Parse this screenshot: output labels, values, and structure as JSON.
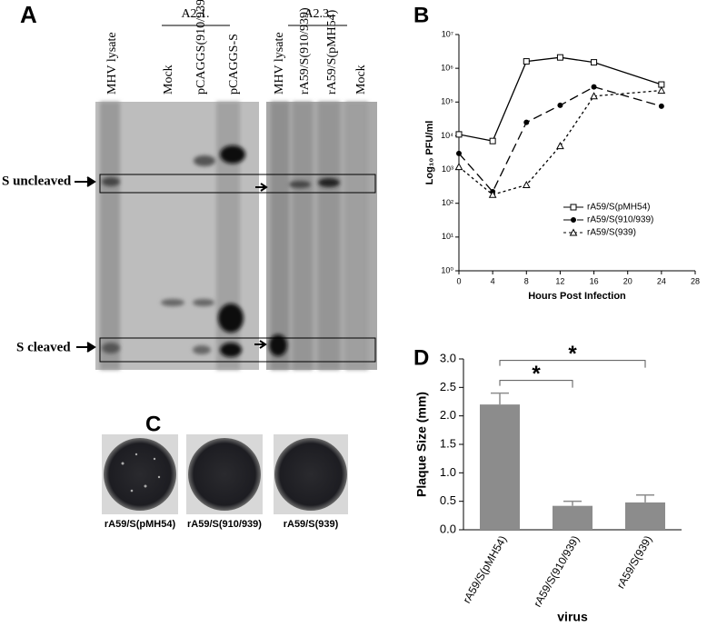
{
  "panel_labels": [
    "A",
    "B",
    "C",
    "D"
  ],
  "gel": {
    "groups": [
      "A2.1.",
      "A2.3."
    ],
    "lanes": [
      "MHV lysate",
      "Mock",
      "pCAGGS(910/939)",
      "pCAGGS-S",
      "MHV lysate",
      "rA59/S(910/939)",
      "rA59/S(pMH54)",
      "Mock"
    ],
    "bands": [
      "S uncleaved",
      "S cleaved"
    ]
  },
  "plates": {
    "labels": [
      "rA59/S(pMH54)",
      "rA59/S(910/939)",
      "rA59/S(939)"
    ]
  },
  "chart_data": [
    {
      "type": "line",
      "ylabel": "Log₁₀ PFU/ml",
      "xlabel": "Hours Post Infection",
      "x": [
        0,
        4,
        8,
        12,
        16,
        24
      ],
      "log_y": true,
      "xlim": [
        0,
        28
      ],
      "xticks": [
        0,
        4,
        8,
        12,
        16,
        20,
        24,
        28
      ],
      "ylim": [
        1,
        10000000
      ],
      "yticks": [
        {
          "value": 1,
          "label": "10⁰"
        },
        {
          "value": 10,
          "label": "10¹"
        },
        {
          "value": 100,
          "label": "10²"
        },
        {
          "value": 1000,
          "label": "10³"
        },
        {
          "value": 10000,
          "label": "10⁴"
        },
        {
          "value": 100000,
          "label": "10⁵"
        },
        {
          "value": 1000000,
          "label": "10⁶"
        },
        {
          "value": 10000000,
          "label": "10⁷"
        }
      ],
      "legend": "right",
      "series": [
        {
          "name": "rA59/S(pMH54)",
          "color": "#000000",
          "dash": "solid",
          "marker": "square",
          "values": [
            11000,
            7000,
            1600000,
            2100000,
            1500000,
            330000
          ]
        },
        {
          "name": "rA59/S(910/939)",
          "color": "#000000",
          "dash": "dashed",
          "marker": "circle",
          "values": [
            3000,
            220,
            25000,
            80000,
            280000,
            75000
          ]
        },
        {
          "name": "rA59/S(939)",
          "color": "#000000",
          "dash": "dotted",
          "marker": "triangle",
          "values": [
            1200,
            180,
            350,
            5000,
            150000,
            220000
          ]
        }
      ]
    },
    {
      "type": "bar",
      "ylabel": "Plaque Size (mm)",
      "xlabel": "virus",
      "categories": [
        "rA59/S(pMH54)",
        "rA59/S(910/939)",
        "rA59/S(939)"
      ],
      "values": [
        2.2,
        0.42,
        0.48
      ],
      "errors": [
        0.2,
        0.08,
        0.13
      ],
      "color": "#8c8c8c",
      "ylim": [
        0,
        3
      ],
      "yticks": [
        {
          "value": 0,
          "label": "0.0"
        },
        0.5,
        {
          "value": 1,
          "label": "1.0"
        },
        1.5,
        {
          "value": 2,
          "label": "2.0"
        },
        2.5,
        {
          "value": 3,
          "label": "3.0"
        }
      ],
      "annotations": [
        "*",
        "*"
      ]
    }
  ]
}
